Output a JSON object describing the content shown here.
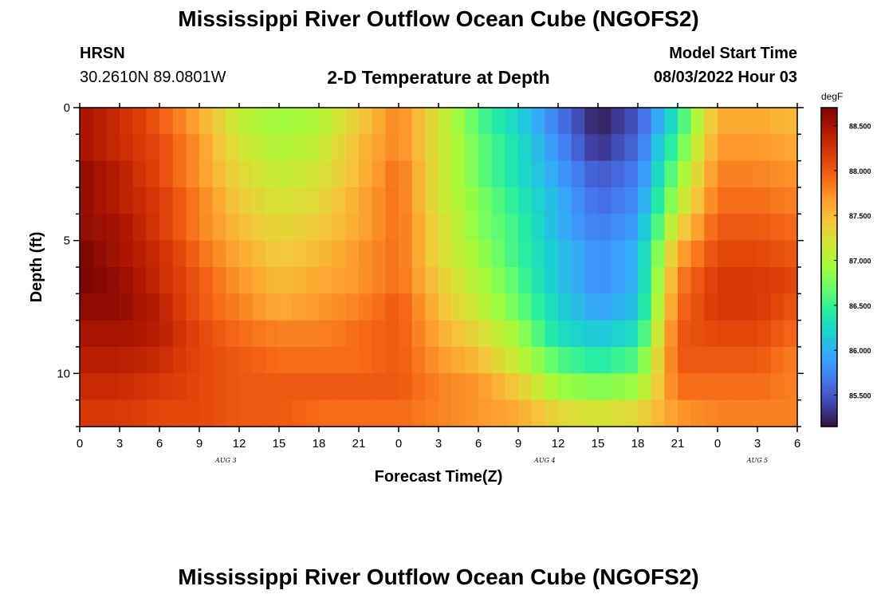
{
  "header": {
    "title": "Mississippi River Outflow Ocean Cube (NGOFS2)",
    "station": "HRSN",
    "location": "30.2610N  89.0801W",
    "subtitle": "2-D Temperature at Depth",
    "model_start_label": "Model Start Time",
    "model_start_value": "08/03/2022 Hour 03"
  },
  "footer": {
    "title": "Mississippi River Outflow Ocean Cube (NGOFS2)"
  },
  "chart_data": {
    "type": "heatmap",
    "title": "2-D Temperature at Depth",
    "xlabel": "Forecast Time(Z)",
    "ylabel": "Depth (ft)",
    "x_tick_labels": [
      "0",
      "3",
      "6",
      "9",
      "12",
      "15",
      "18",
      "21",
      "0",
      "3",
      "6",
      "9",
      "12",
      "15",
      "18",
      "21",
      "0",
      "3",
      "6"
    ],
    "x_range_hours": [
      0,
      54
    ],
    "date_labels": [
      {
        "label": "AUG 3",
        "hour": 11
      },
      {
        "label": "AUG 4",
        "hour": 35
      },
      {
        "label": "AUG 5",
        "hour": 51
      }
    ],
    "y_tick_labels": [
      "0",
      "5",
      "10"
    ],
    "y_range_ft": [
      0,
      12
    ],
    "y_inverted": true,
    "colorbar": {
      "unit": "degF",
      "range": [
        85.15,
        88.7
      ],
      "tick_labels": [
        "85.500",
        "86.000",
        "86.500",
        "87.000",
        "87.500",
        "88.000",
        "88.500"
      ],
      "tick_values": [
        85.5,
        86.0,
        86.5,
        87.0,
        87.5,
        88.0,
        88.5
      ],
      "colormap": [
        "#30123b",
        "#4145ab",
        "#4675ed",
        "#39a2fc",
        "#1bcfd4",
        "#24eca6",
        "#61fc6c",
        "#a4fc3b",
        "#d1e834",
        "#f3c63a",
        "#fe9b2d",
        "#f36315",
        "#d93806",
        "#b11901",
        "#7a0403"
      ]
    },
    "depth_levels_ft": [
      0.5,
      1.5,
      2.5,
      3.5,
      4.5,
      5.5,
      6.5,
      7.5,
      8.5,
      9.5,
      10.5,
      11.5
    ],
    "time_hours": [
      0,
      3,
      6,
      9,
      12,
      15,
      18,
      21,
      24,
      27,
      30,
      33,
      36,
      39,
      42,
      45,
      48,
      51,
      54
    ],
    "values_degF": [
      [
        88.5,
        88.3,
        88.0,
        87.6,
        87.1,
        86.9,
        87.0,
        87.4,
        87.8,
        87.2,
        86.6,
        86.2,
        85.7,
        85.2,
        85.5,
        86.4,
        87.6,
        87.6,
        87.5
      ],
      [
        88.5,
        88.3,
        88.1,
        87.7,
        87.2,
        87.0,
        87.1,
        87.5,
        87.8,
        87.2,
        86.7,
        86.3,
        85.8,
        85.3,
        85.6,
        86.6,
        87.7,
        87.7,
        87.6
      ],
      [
        88.6,
        88.4,
        88.1,
        87.7,
        87.3,
        87.1,
        87.2,
        87.5,
        87.9,
        87.2,
        86.7,
        86.3,
        85.9,
        85.5,
        85.7,
        86.8,
        87.8,
        87.8,
        87.7
      ],
      [
        88.6,
        88.4,
        88.2,
        87.8,
        87.4,
        87.2,
        87.3,
        87.6,
        87.9,
        87.2,
        86.8,
        86.4,
        86.0,
        85.6,
        85.8,
        87.0,
        87.9,
        87.9,
        87.8
      ],
      [
        88.6,
        88.5,
        88.2,
        87.8,
        87.5,
        87.3,
        87.4,
        87.6,
        87.9,
        87.3,
        86.8,
        86.5,
        86.0,
        85.7,
        85.9,
        87.3,
        88.0,
        88.0,
        87.9
      ],
      [
        88.7,
        88.5,
        88.3,
        87.9,
        87.6,
        87.4,
        87.5,
        87.7,
        87.9,
        87.3,
        86.9,
        86.5,
        86.1,
        85.8,
        86.0,
        87.6,
        88.1,
        88.1,
        88.0
      ],
      [
        88.7,
        88.6,
        88.3,
        88.0,
        87.7,
        87.5,
        87.6,
        87.7,
        87.9,
        87.4,
        87.0,
        86.6,
        86.1,
        85.8,
        86.0,
        87.8,
        88.2,
        88.2,
        88.1
      ],
      [
        88.6,
        88.6,
        88.4,
        88.0,
        87.8,
        87.6,
        87.7,
        87.8,
        88.0,
        87.5,
        87.1,
        86.7,
        86.2,
        85.9,
        86.1,
        87.9,
        88.2,
        88.2,
        88.0
      ],
      [
        88.5,
        88.5,
        88.4,
        88.1,
        87.9,
        87.8,
        87.8,
        87.9,
        88.0,
        87.6,
        87.3,
        86.9,
        86.3,
        86.1,
        86.3,
        88.0,
        88.1,
        88.1,
        87.9
      ],
      [
        88.4,
        88.4,
        88.3,
        88.1,
        88.0,
        87.9,
        87.9,
        87.9,
        88.0,
        87.7,
        87.5,
        87.1,
        86.6,
        86.4,
        86.6,
        88.0,
        88.0,
        88.0,
        87.8
      ],
      [
        88.3,
        88.3,
        88.2,
        88.1,
        88.0,
        88.0,
        88.0,
        88.0,
        88.0,
        87.8,
        87.7,
        87.4,
        86.9,
        86.8,
        86.9,
        87.9,
        87.9,
        87.9,
        87.8
      ],
      [
        88.2,
        88.2,
        88.1,
        88.1,
        88.0,
        88.0,
        87.9,
        87.9,
        87.9,
        87.8,
        87.7,
        87.6,
        87.3,
        87.2,
        87.3,
        87.7,
        87.8,
        87.8,
        87.8
      ]
    ]
  }
}
